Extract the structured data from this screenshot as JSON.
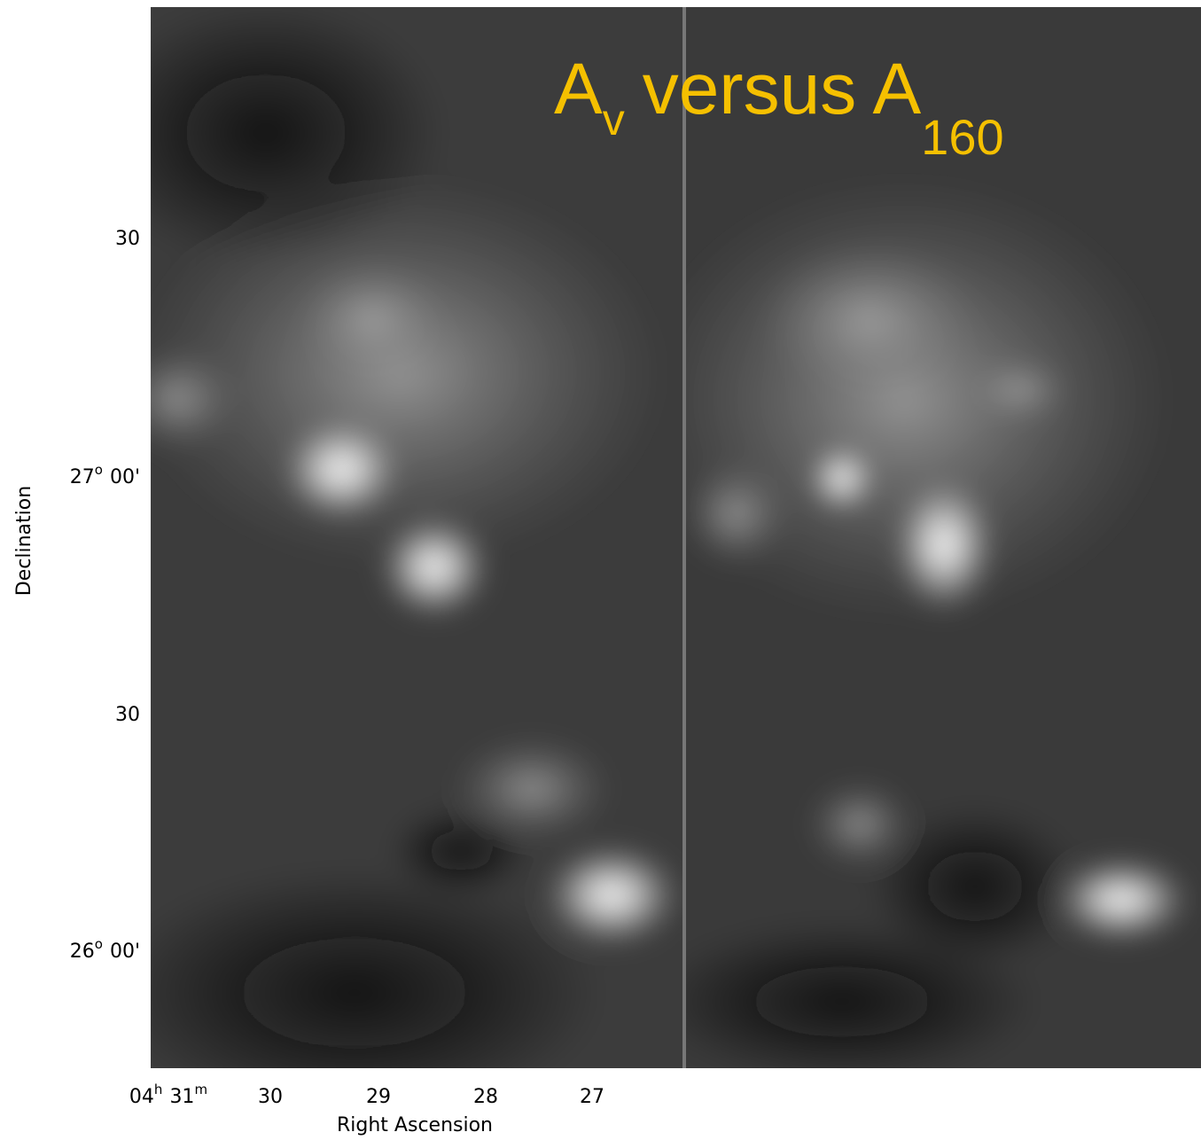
{
  "title": {
    "main1": "A",
    "sub1": "v",
    "main2": "versus A",
    "sub2": "160"
  },
  "y_axis": {
    "label": "Declination",
    "ticks": [
      {
        "text": "30"
      },
      {
        "deg": "27",
        "sup": "o",
        "min": "00'"
      },
      {
        "text": "30"
      },
      {
        "deg": "26",
        "sup": "o",
        "min": "00'"
      }
    ]
  },
  "x_axis": {
    "label": "Right Ascension",
    "first_tick": {
      "h": "04",
      "hsup": "h",
      "m": "31",
      "msup": "m"
    },
    "ticks": [
      "30",
      "29",
      "28",
      "27"
    ]
  }
}
